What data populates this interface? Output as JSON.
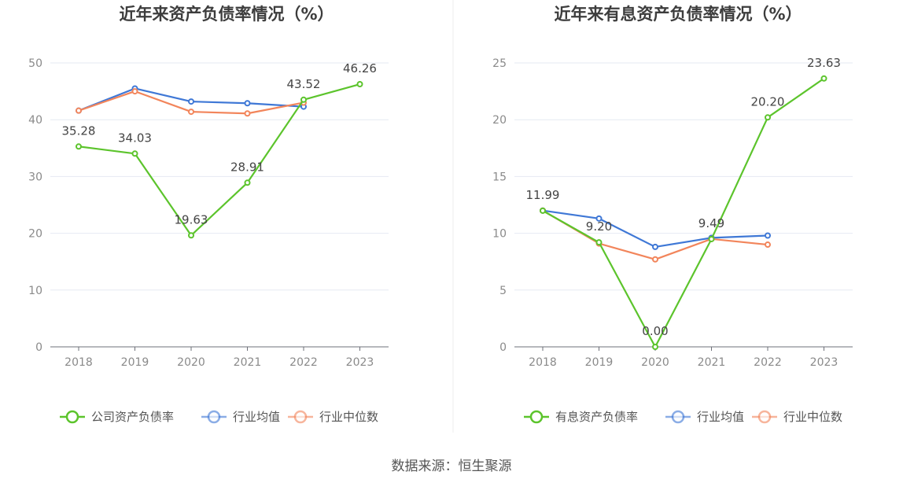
{
  "source_text": "数据来源：恒生聚源",
  "chart_data": [
    {
      "type": "line",
      "title": "近年来资产负债率情况（%）",
      "categories": [
        "2018",
        "2019",
        "2020",
        "2021",
        "2022",
        "2023"
      ],
      "ylim": [
        0,
        50
      ],
      "yticks": [
        0,
        10,
        20,
        30,
        40,
        50
      ],
      "grid": true,
      "legend_position": "bottom",
      "series": [
        {
          "name": "公司资产负债率",
          "color": "#5cc42c",
          "values": [
            35.28,
            34.03,
            19.63,
            28.91,
            43.52,
            46.26
          ],
          "labels": [
            "35.28",
            "34.03",
            "19.63",
            "28.91",
            "43.52",
            "46.26"
          ]
        },
        {
          "name": "行业均值",
          "color": "#3f78d6",
          "values": [
            41.6,
            45.5,
            43.2,
            42.9,
            42.3,
            null
          ]
        },
        {
          "name": "行业中位数",
          "color": "#f2855b",
          "values": [
            41.6,
            45.0,
            41.4,
            41.1,
            43.0,
            null
          ]
        }
      ]
    },
    {
      "type": "line",
      "title": "近年来有息资产负债率情况（%）",
      "categories": [
        "2018",
        "2019",
        "2020",
        "2021",
        "2022",
        "2023"
      ],
      "ylim": [
        0,
        25
      ],
      "yticks": [
        0,
        5,
        10,
        15,
        20,
        25
      ],
      "grid": true,
      "legend_position": "bottom",
      "series": [
        {
          "name": "有息资产负债率",
          "color": "#5cc42c",
          "values": [
            11.99,
            9.2,
            0.0,
            9.49,
            20.2,
            23.63
          ],
          "labels": [
            "11.99",
            "9.20",
            "0.00",
            "9.49",
            "20.20",
            "23.63"
          ]
        },
        {
          "name": "行业均值",
          "color": "#3f78d6",
          "values": [
            12.0,
            11.3,
            8.8,
            9.6,
            9.8,
            null
          ]
        },
        {
          "name": "行业中位数",
          "color": "#f2855b",
          "values": [
            12.0,
            9.1,
            7.7,
            9.5,
            9.0,
            null
          ]
        }
      ]
    }
  ]
}
